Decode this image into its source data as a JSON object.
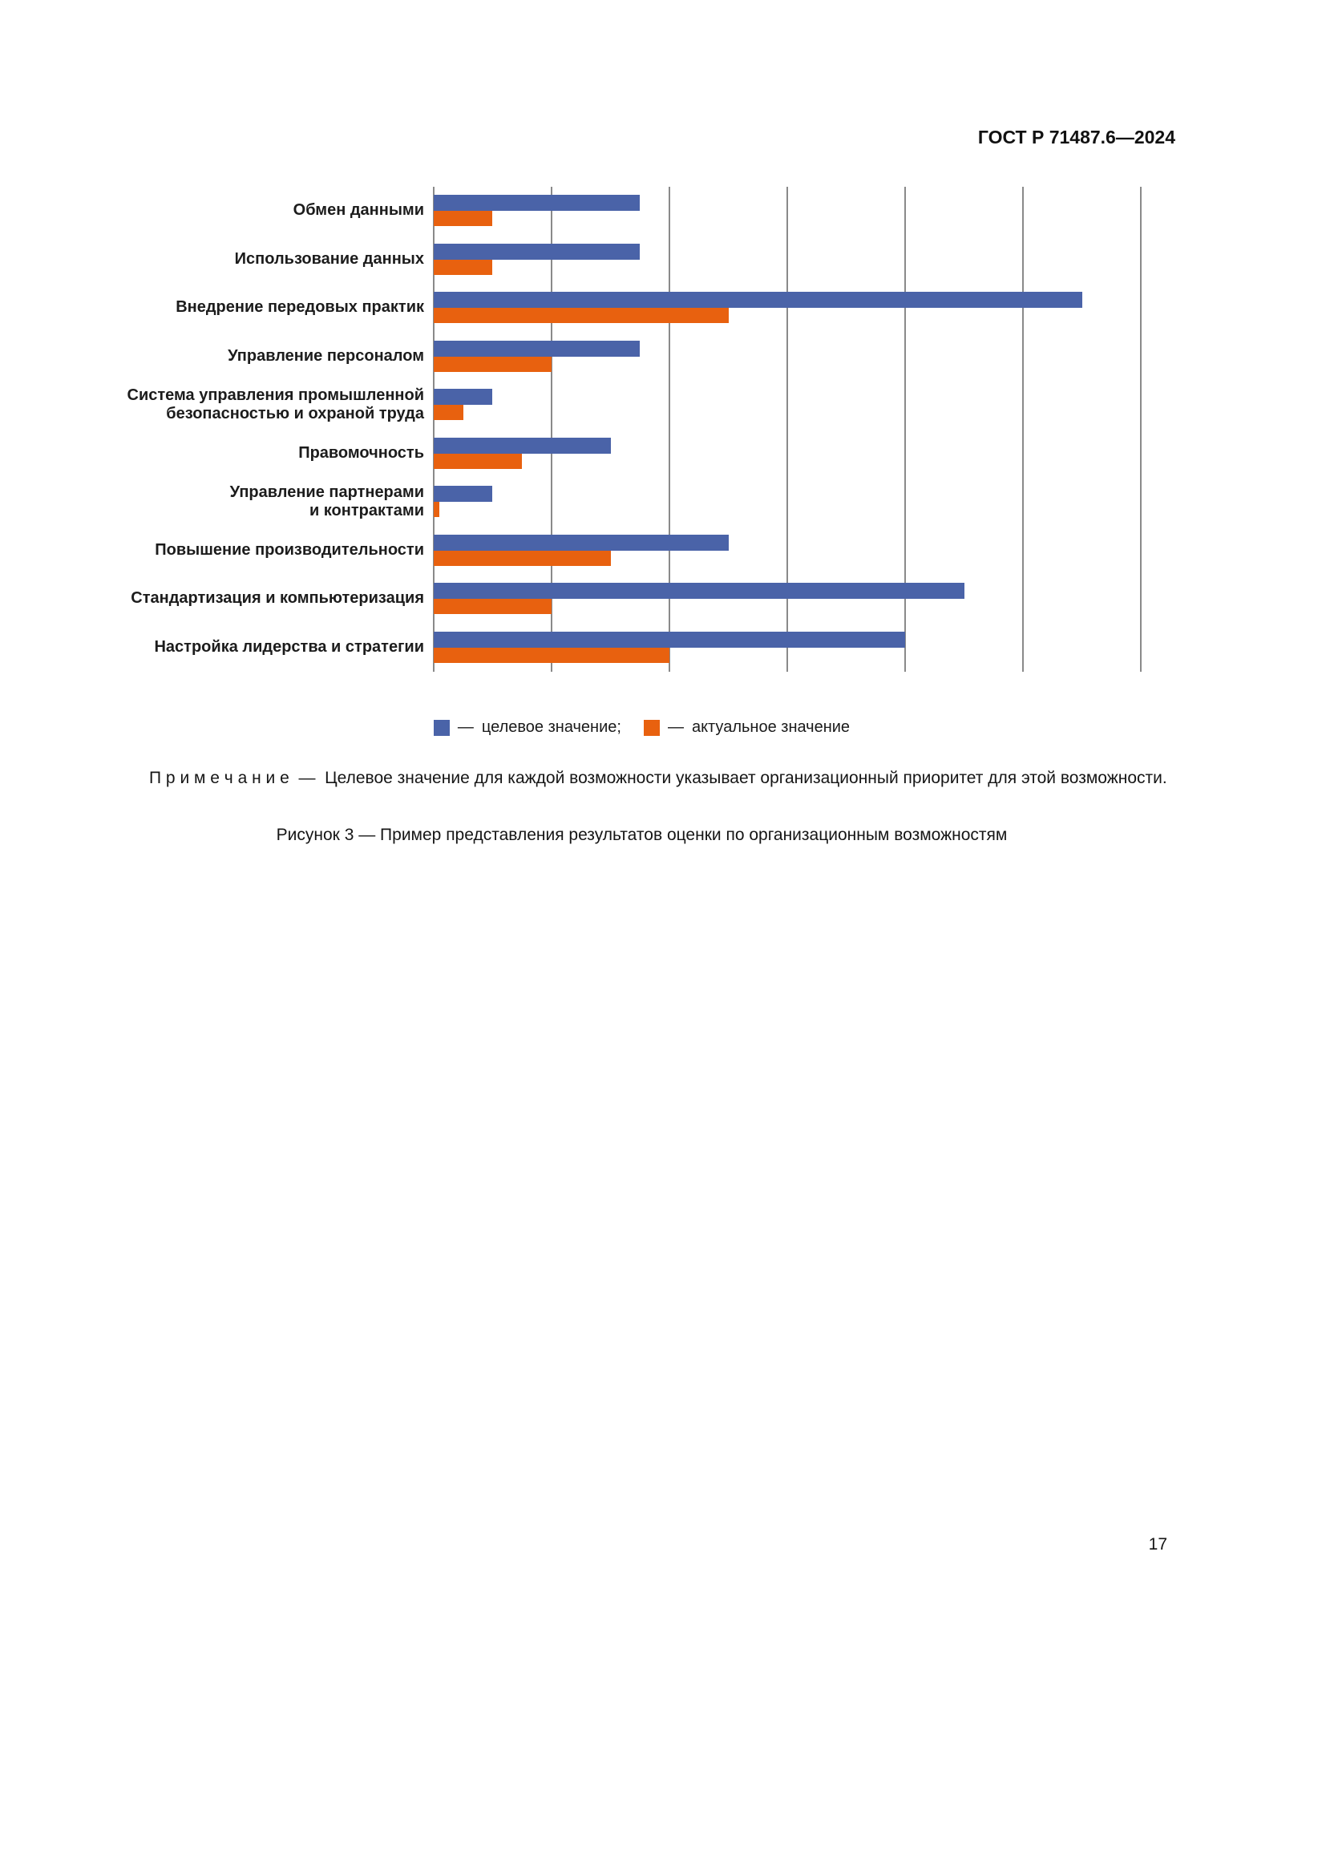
{
  "page": {
    "header": "ГОСТ Р 71487.6—2024",
    "page_number": "17"
  },
  "note": {
    "label": "П р и м е ч а н и е",
    "dash": "—",
    "text": "Целевое значение для каждой возможности указывает организационный приоритет для этой возможности."
  },
  "caption": "Рисунок 3 — Пример представления результатов оценки по организационным возможностям",
  "legend": {
    "dash": "—",
    "target_label": "целевое значение;",
    "actual_label": "актуальное значение"
  },
  "chart_data": {
    "type": "bar",
    "orientation": "horizontal",
    "title": "",
    "xlabel": "",
    "ylabel": "",
    "xlim": [
      0,
      6
    ],
    "gridline_count": 7,
    "grid": true,
    "legend_position": "bottom",
    "categories": [
      "Обмен данными",
      "Использование данных",
      "Внедрение передовых практик",
      "Управление персоналом",
      "Система управления промышленной\nбезопасностью и охраной труда",
      "Правомочность",
      "Управление партнерами\nи контрактами",
      "Повышение производительности",
      "Стандартизация и компьютеризация",
      "Настройка лидерства и стратегии"
    ],
    "series": [
      {
        "name": "целевое значение",
        "color": "#4a63a8",
        "values": [
          1.75,
          1.75,
          5.5,
          1.75,
          0.5,
          1.5,
          0.5,
          2.5,
          4.5,
          4.0
        ]
      },
      {
        "name": "актуальное значение",
        "color": "#e8610f",
        "values": [
          0.5,
          0.5,
          2.5,
          1.0,
          0.25,
          0.75,
          0.05,
          1.5,
          1.0,
          2.0
        ]
      }
    ]
  }
}
